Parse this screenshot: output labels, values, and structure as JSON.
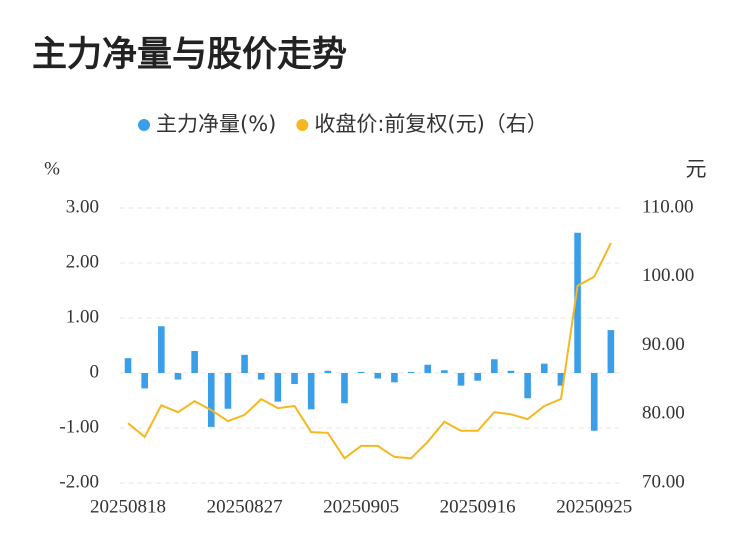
{
  "chart_data": {
    "type": "bar-line",
    "title": "主力净量与股价走势",
    "y_label": "%",
    "y2_label": "元",
    "categories": [
      "20250818",
      null,
      null,
      null,
      null,
      null,
      null,
      "20250827",
      null,
      null,
      null,
      null,
      null,
      null,
      "20250905",
      null,
      null,
      null,
      null,
      null,
      null,
      "20250916",
      null,
      null,
      null,
      null,
      null,
      null,
      "20250925",
      null
    ],
    "series": [
      {
        "name": "主力净量(%)",
        "color": "#3a9ee8",
        "kind": "bar",
        "values": [
          0.27,
          -0.28,
          0.85,
          -0.12,
          0.4,
          -0.98,
          -0.65,
          0.33,
          -0.12,
          -0.52,
          -0.2,
          -0.66,
          0.04,
          -0.55,
          0.02,
          -0.1,
          -0.17,
          0.02,
          0.15,
          0.05,
          -0.23,
          -0.14,
          0.25,
          0.04,
          -0.46,
          0.17,
          -0.23,
          2.55,
          -1.05,
          0.78
        ]
      },
      {
        "name": "收盘价:前复权(元)（右）",
        "color": "#f5b820",
        "kind": "line",
        "axis": "y2",
        "values": [
          78.7,
          76.7,
          81.3,
          80.3,
          81.9,
          80.6,
          79.0,
          79.9,
          82.2,
          80.9,
          81.2,
          77.4,
          77.3,
          73.6,
          75.4,
          75.4,
          73.8,
          73.6,
          76.0,
          78.9,
          77.6,
          77.6,
          80.3,
          80.0,
          79.3,
          81.2,
          82.2,
          98.7,
          100.0,
          104.9
        ]
      }
    ],
    "ylim": [
      -2,
      3
    ],
    "yticks": [
      {
        "value": -2,
        "label": "-2.00"
      },
      {
        "value": -1,
        "label": "-1.00"
      },
      0,
      {
        "value": 1,
        "label": "1.00"
      },
      {
        "value": 2,
        "label": "2.00"
      },
      {
        "value": 3,
        "label": "3.00"
      }
    ],
    "y2lim": [
      70,
      110
    ],
    "y2ticks": [
      {
        "value": 70,
        "label": "70.00"
      },
      {
        "value": 80,
        "label": "80.00"
      },
      {
        "value": 90,
        "label": "90.00"
      },
      {
        "value": 100,
        "label": "100.00"
      },
      {
        "value": 110,
        "label": "110.00"
      }
    ],
    "grid": true
  }
}
